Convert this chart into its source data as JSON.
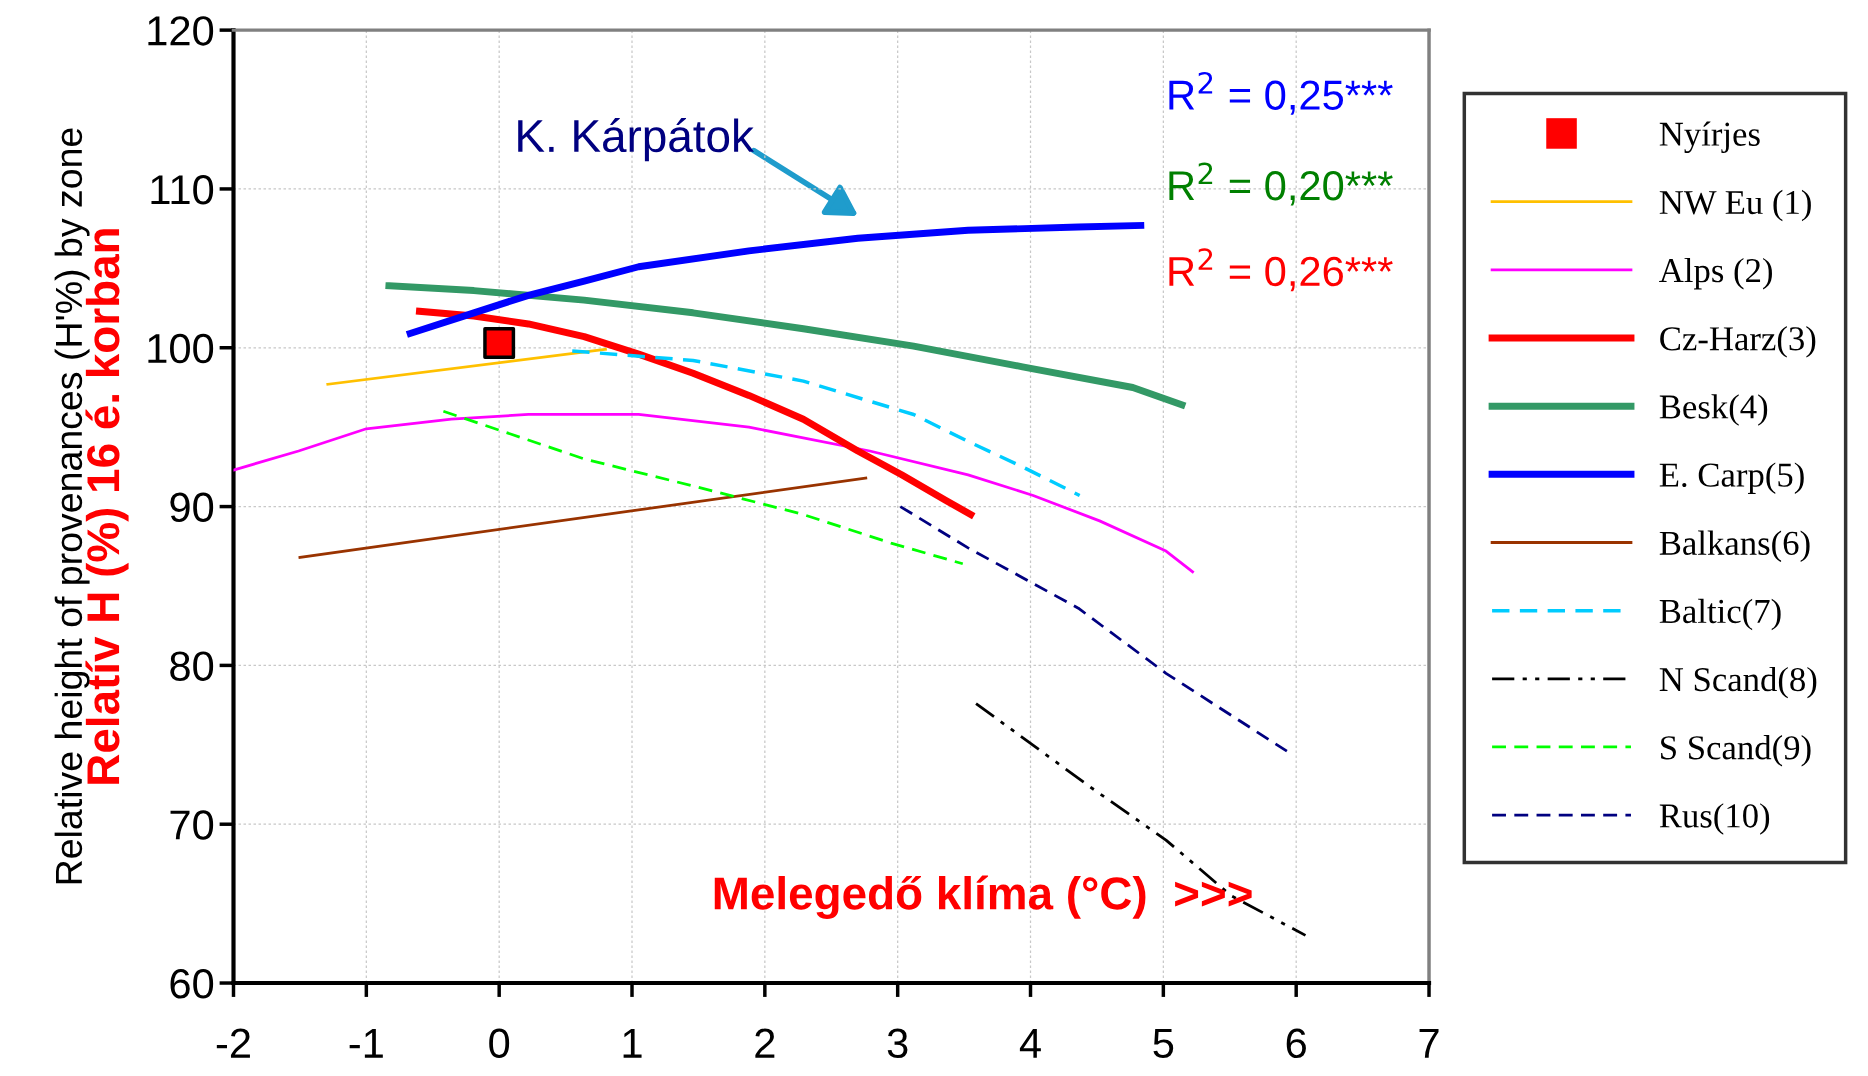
{
  "chart_data": {
    "type": "line",
    "xlabel": null,
    "ylabel": "Relatív H (%) 16 é. korban",
    "xlim": [
      -2,
      7
    ],
    "xticks": [
      -2,
      -1,
      0,
      1,
      2,
      3,
      4,
      5,
      6,
      7
    ],
    "ylim": [
      60,
      120
    ],
    "yticks": [
      60,
      70,
      80,
      90,
      100,
      110,
      120
    ],
    "grid": true,
    "legend": "right",
    "series": [
      {
        "name": "Nyírjes",
        "type": "scatter",
        "marker": "square",
        "color": "#ff0000",
        "x": [
          0
        ],
        "values": [
          100.3
        ]
      },
      {
        "name": "NW Eu (1)",
        "color": "#ffc000",
        "line_style": "solid",
        "x": [
          -1.29,
          0.8
        ],
        "values": [
          97.7,
          99.9
        ]
      },
      {
        "name": "Alps (2)",
        "color": "#ff00ff",
        "line_style": "solid",
        "x": [
          -2,
          -1.51,
          -1.0,
          -0.36,
          0.22,
          1.05,
          1.88,
          2.79,
          3.53,
          4.02,
          4.52,
          5.02,
          5.22
        ],
        "values": [
          92.3,
          93.5,
          94.9,
          95.5,
          95.8,
          95.8,
          95.0,
          93.5,
          92.0,
          90.7,
          89.1,
          87.2,
          85.9
        ]
      },
      {
        "name": "Cz-Harz(3)",
        "color": "#ff0000",
        "line_style": "solid",
        "x": [
          -0.6,
          -0.19,
          0.22,
          0.64,
          1.05,
          1.46,
          1.88,
          2.29,
          2.7,
          3.03,
          3.36,
          3.55
        ],
        "values": [
          102.3,
          102.0,
          101.5,
          100.7,
          99.6,
          98.4,
          97.0,
          95.5,
          93.5,
          92.0,
          90.4,
          89.5
        ]
      },
      {
        "name": "Besk(4)",
        "color": "#339966",
        "line_style": "solid",
        "x": [
          -0.83,
          -0.19,
          0.64,
          1.46,
          2.29,
          3.12,
          3.94,
          4.77,
          5.14
        ],
        "values": [
          103.9,
          103.6,
          103.0,
          102.2,
          101.2,
          100.1,
          98.8,
          97.5,
          96.4
        ]
      },
      {
        "name": "E. Carp(5)",
        "color": "#0000ff",
        "line_style": "solid",
        "x": [
          -0.67,
          -0.19,
          0.22,
          0.64,
          1.05,
          1.88,
          2.7,
          3.53,
          4.36,
          4.83
        ],
        "values": [
          100.9,
          102.2,
          103.3,
          104.2,
          105.1,
          106.1,
          106.9,
          107.4,
          107.6,
          107.7
        ]
      },
      {
        "name": "Balkans(6)",
        "color": "#993300",
        "line_style": "solid",
        "x": [
          -1.5,
          2.76
        ],
        "values": [
          86.8,
          91.8
        ]
      },
      {
        "name": "Baltic(7)",
        "color": "#00ccff",
        "line_style": "dashed",
        "x": [
          0.55,
          1.46,
          2.29,
          3.12,
          3.53,
          3.94,
          4.37
        ],
        "values": [
          99.8,
          99.2,
          97.9,
          95.8,
          94.1,
          92.5,
          90.7
        ]
      },
      {
        "name": "N Scand(8)",
        "color": "#000000",
        "line_style": "dashdot",
        "x": [
          3.59,
          4.44,
          5.02,
          5.51,
          6.07
        ],
        "values": [
          77.6,
          72.4,
          69.0,
          65.5,
          63.0
        ]
      },
      {
        "name": "S Scand(9)",
        "color": "#00ff00",
        "line_style": "dashed",
        "x": [
          -0.42,
          0.64,
          1.46,
          2.29,
          2.95,
          3.49
        ],
        "values": [
          96.0,
          93.0,
          91.3,
          89.5,
          87.7,
          86.4
        ]
      },
      {
        "name": "Rus(10)",
        "color": "#000080",
        "line_style": "dashed",
        "x": [
          3.02,
          3.53,
          4.36,
          5.02,
          5.93
        ],
        "values": [
          90.0,
          87.4,
          83.6,
          79.5,
          74.6
        ]
      }
    ],
    "annotations": [
      "K. Kárpátok",
      "R$^{2}$ = 0,25***",
      "R$^{2}$ = 0,20***",
      "R$^{2}$ = 0,26***",
      "Melegedő klíma (°C)  >>>",
      "Relative height of provenances (H'%) by zone"
    ]
  }
}
